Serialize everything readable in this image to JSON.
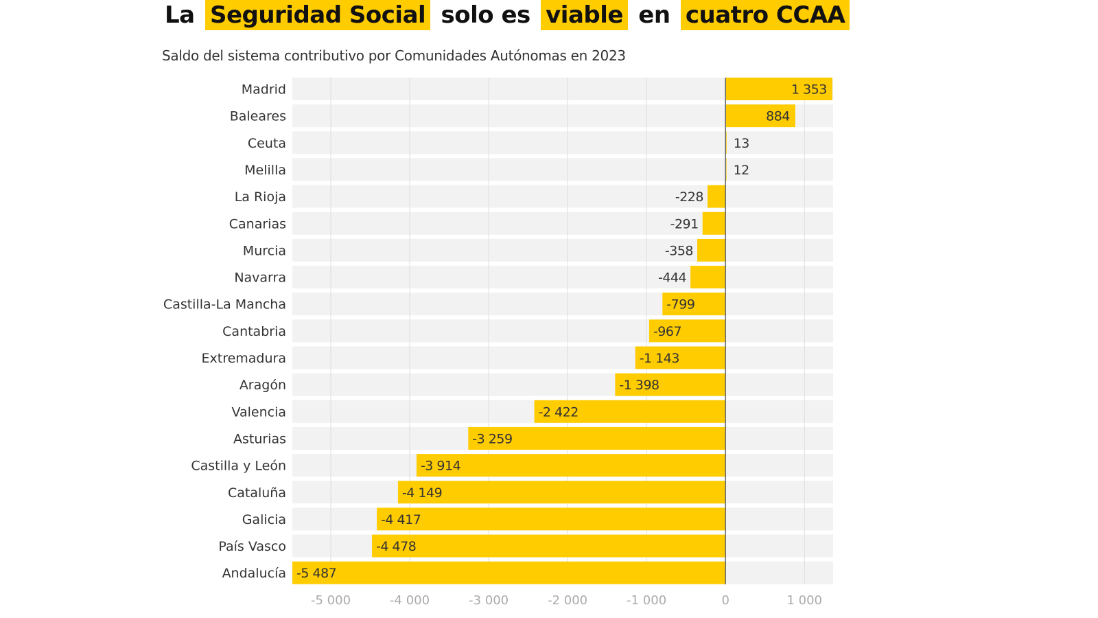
{
  "title": {
    "parts": [
      {
        "text": "La",
        "highlight": false
      },
      {
        "text": "Seguridad Social",
        "highlight": true
      },
      {
        "text": "solo es",
        "highlight": false
      },
      {
        "text": "viable",
        "highlight": true
      },
      {
        "text": "en",
        "highlight": false
      },
      {
        "text": "cuatro CCAA",
        "highlight": true
      }
    ]
  },
  "subtitle": "Saldo del sistema contributivo por Comunidades Autónomas en 2023",
  "colors": {
    "bar": "#ffcc00",
    "band": "#f2f2f2",
    "grid": "#dddddd",
    "zero": "#666666",
    "highlight": "#ffcc00"
  },
  "chart_data": {
    "type": "bar",
    "orientation": "horizontal",
    "title": "La Seguridad Social solo es viable en cuatro CCAA",
    "subtitle": "Saldo del sistema contributivo por Comunidades Autónomas en 2023",
    "categories": [
      "Madrid",
      "Baleares",
      "Ceuta",
      "Melilla",
      "La Rioja",
      "Canarias",
      "Murcia",
      "Navarra",
      "Castilla-La Mancha",
      "Cantabria",
      "Extremadura",
      "Aragón",
      "Valencia",
      "Asturias",
      "Castilla y León",
      "Cataluña",
      "Galicia",
      "País Vasco",
      "Andalucía"
    ],
    "values": [
      1353,
      884,
      13,
      12,
      -228,
      -291,
      -358,
      -444,
      -799,
      -967,
      -1143,
      -1398,
      -2422,
      -3259,
      -3914,
      -4149,
      -4417,
      -4478,
      -5487
    ],
    "value_labels": [
      "1 353",
      "884",
      "13",
      "12",
      "-228",
      "-291",
      "-358",
      "-444",
      "-799",
      "-967",
      "-1 143",
      "-1 398",
      "-2 422",
      "-3 259",
      "-3 914",
      "-4 149",
      "-4 417",
      "-4 478",
      "-5 487"
    ],
    "xlim": [
      -5487,
      1363
    ],
    "xticks": [
      -5000,
      -4000,
      -3000,
      -2000,
      -1000,
      0,
      1000
    ],
    "xtick_labels": [
      "-5 000",
      "-4 000",
      "-3 000",
      "-2 000",
      "-1 000",
      "0",
      "1 000"
    ],
    "xlabel": "",
    "ylabel": "",
    "grid": true
  }
}
